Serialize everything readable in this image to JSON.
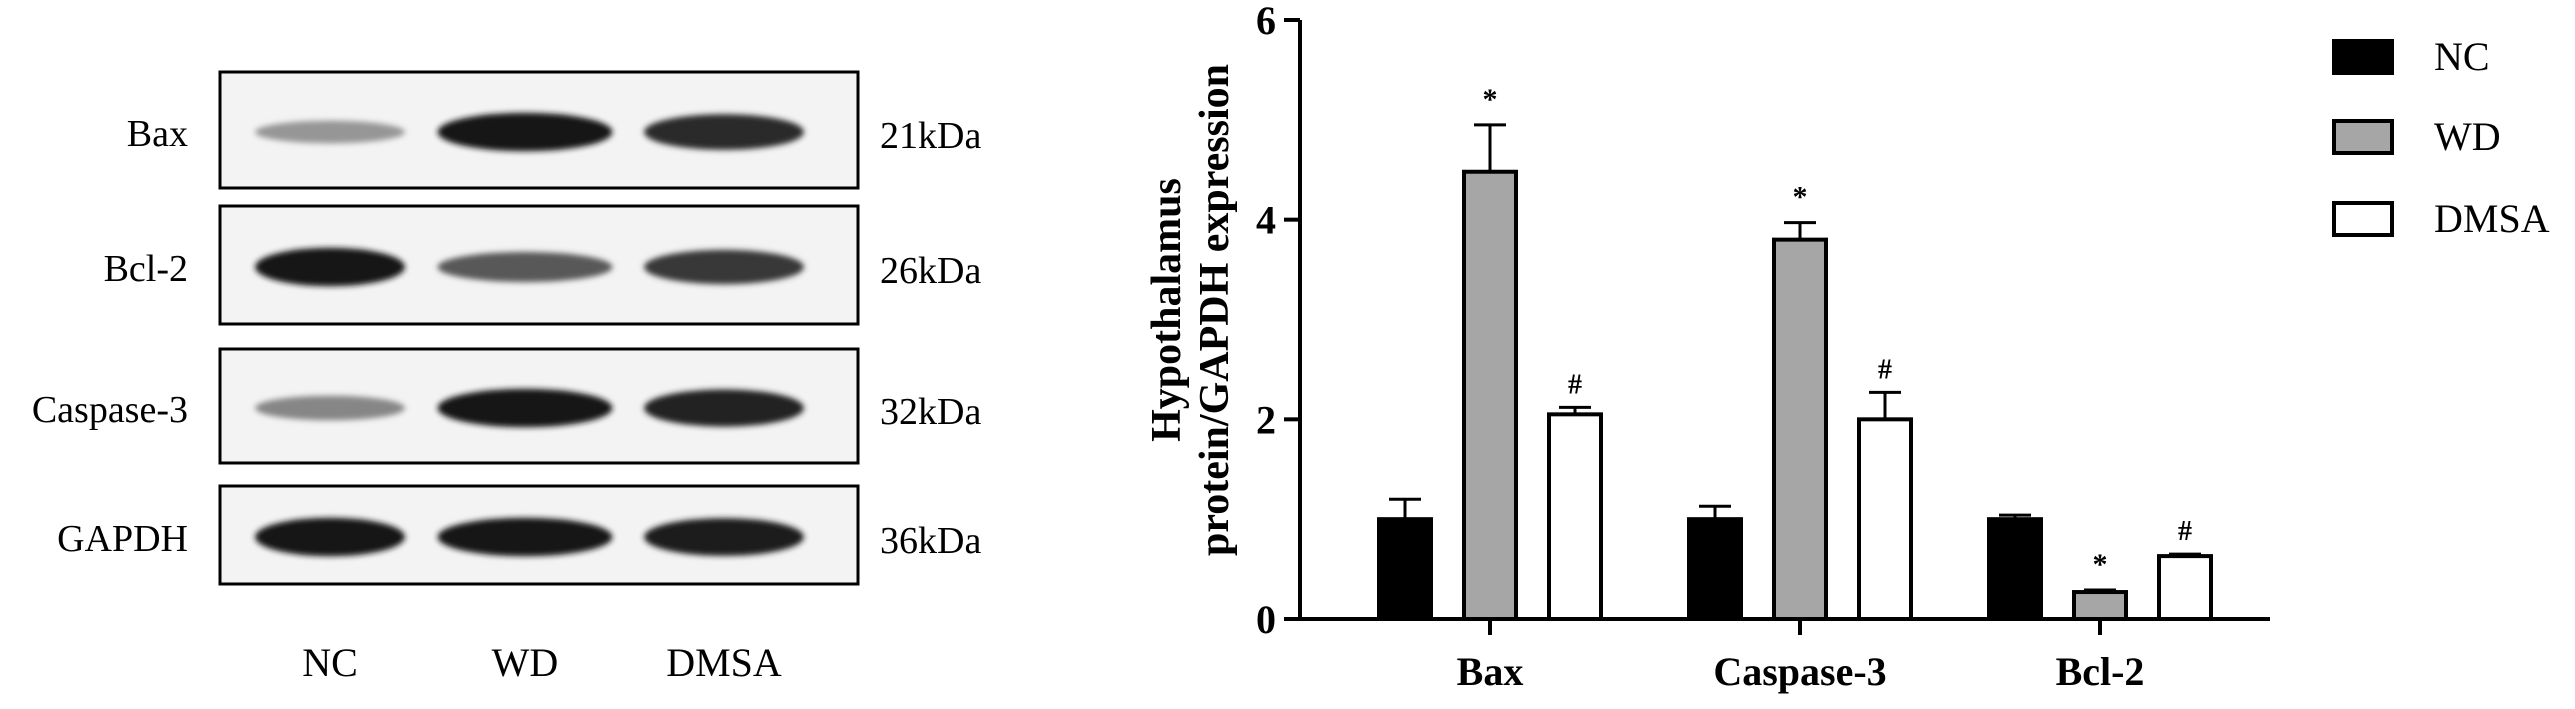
{
  "western_blot": {
    "bands": [
      {
        "name": "Bax",
        "size": "21kDa",
        "intensities": [
          0.38,
          0.95,
          0.85
        ]
      },
      {
        "name": "Bcl-2",
        "size": "26kDa",
        "intensities": [
          0.95,
          0.65,
          0.8
        ]
      },
      {
        "name": "Caspase-3",
        "size": "32kDa",
        "intensities": [
          0.45,
          0.95,
          0.9
        ]
      },
      {
        "name": "GAPDH",
        "size": "36kDa",
        "intensities": [
          0.95,
          0.95,
          0.92
        ]
      }
    ],
    "lanes": [
      "NC",
      "WD",
      "DMSA"
    ]
  },
  "chart_data": {
    "type": "bar",
    "ylabel_lines": [
      "Hypothalamus",
      "protein/GAPDH expression"
    ],
    "categories": [
      "Bax",
      "Caspase-3",
      "Bcl-2"
    ],
    "yticks": [
      "0",
      "2",
      "4",
      "6"
    ],
    "ylim": [
      0,
      6
    ],
    "grid": false,
    "legend_position": "top-right",
    "series": [
      {
        "name": "NC",
        "color": "#000000",
        "values": [
          1.0,
          1.0,
          1.0
        ],
        "errors": [
          0.2,
          0.13,
          0.04
        ],
        "marks": [
          "",
          "",
          ""
        ]
      },
      {
        "name": "WD",
        "color": "#a6a6a6",
        "values": [
          4.48,
          3.8,
          0.27
        ],
        "errors": [
          0.47,
          0.17,
          0.02
        ],
        "marks": [
          "*",
          "*",
          "*"
        ]
      },
      {
        "name": "DMSA",
        "color": "#ffffff",
        "values": [
          2.05,
          2.0,
          0.63
        ],
        "errors": [
          0.07,
          0.27,
          0.02
        ],
        "marks": [
          "#",
          "#",
          "#"
        ]
      }
    ]
  }
}
